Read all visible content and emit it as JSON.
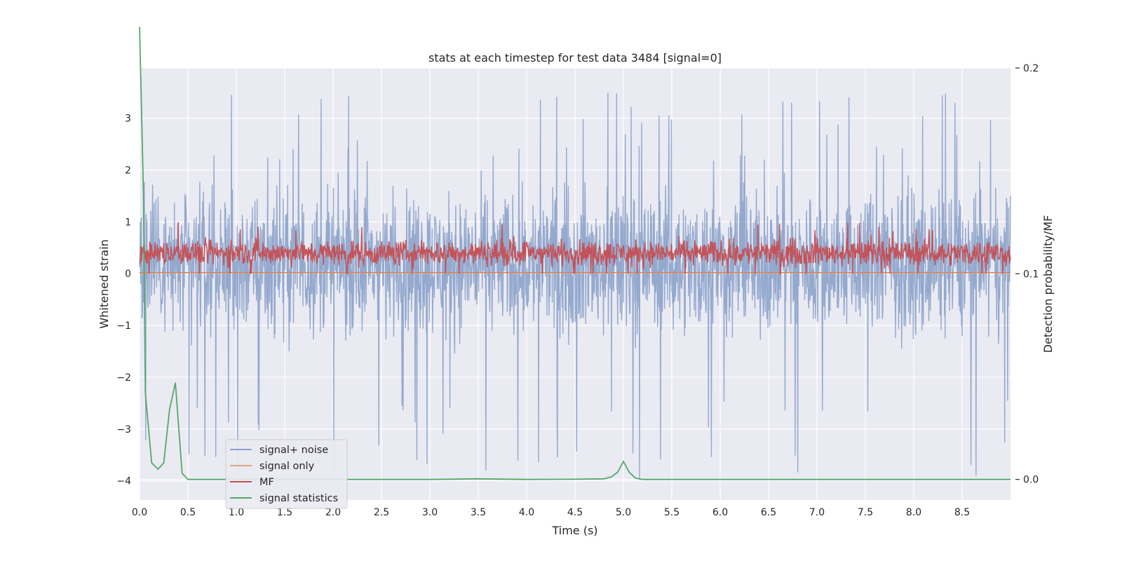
{
  "chart_data": {
    "type": "line",
    "title": "stats at each timestep for test data 3484 [signal=0]",
    "xlabel": "Time (s)",
    "ylabel": "Whitened strain",
    "y2label": "Detection probability/MF",
    "xlim": [
      0.0,
      9.0
    ],
    "ylim": [
      -4.37,
      3.97
    ],
    "y2lim": [
      -0.01,
      0.2
    ],
    "x_ticks": [
      "0.0",
      "0.5",
      "1.0",
      "1.5",
      "2.0",
      "2.5",
      "3.0",
      "3.5",
      "4.0",
      "4.5",
      "5.0",
      "5.5",
      "6.0",
      "6.5",
      "7.0",
      "7.5",
      "8.0",
      "8.5"
    ],
    "x_tick_values": [
      0.0,
      0.5,
      1.0,
      1.5,
      2.0,
      2.5,
      3.0,
      3.5,
      4.0,
      4.5,
      5.0,
      5.5,
      6.0,
      6.5,
      7.0,
      7.5,
      8.0,
      8.5
    ],
    "y_ticks": [
      "3",
      "2",
      "1",
      "0",
      "−1",
      "−2",
      "−3",
      "−4"
    ],
    "y_tick_values": [
      3,
      2,
      1,
      0,
      -1,
      -2,
      -3,
      -4
    ],
    "y2_ticks": [
      "0.2",
      "0.1",
      "0.0"
    ],
    "y2_tick_values": [
      0.2,
      0.1,
      0.0
    ],
    "grid": true,
    "legend_position": "lower-left",
    "series": [
      {
        "name": "signal+ noise",
        "color": "#4c72b0",
        "axis": "left",
        "kind": "noise",
        "x_range": [
          0.0,
          9.0
        ],
        "amplitude_range": [
          -4.0,
          3.55
        ],
        "typical_band": [
          -1.7,
          2.1
        ]
      },
      {
        "name": "signal only",
        "color": "#dd8452",
        "axis": "left",
        "x": [
          0.0,
          9.0
        ],
        "y": [
          0.02,
          0.02
        ]
      },
      {
        "name": "MF",
        "color": "#c44e52",
        "axis": "left",
        "kind": "noise",
        "x_range": [
          0.0,
          9.0
        ],
        "amplitude_range": [
          0.0,
          1.0
        ],
        "typical_band": [
          0.05,
          0.75
        ]
      },
      {
        "name": "signal statistics",
        "color": "#55a868",
        "axis": "right",
        "x": [
          0.0,
          0.02,
          0.04,
          0.06,
          0.125,
          0.19,
          0.25,
          0.31,
          0.37,
          0.44,
          0.5,
          1.0,
          2.0,
          3.0,
          3.5,
          4.0,
          4.5,
          4.8,
          4.875,
          4.94,
          5.0,
          5.06,
          5.125,
          5.2,
          5.5,
          6.0,
          7.0,
          8.0,
          9.0
        ],
        "y": [
          0.22,
          0.18,
          0.14,
          0.042,
          0.008,
          0.005,
          0.008,
          0.034,
          0.047,
          0.003,
          0.0,
          0.0,
          0.0,
          0.0,
          0.0003,
          0.0,
          0.0001,
          0.0003,
          0.0012,
          0.0035,
          0.0087,
          0.0035,
          0.0006,
          0.0,
          0.0,
          0.0,
          0.0,
          0.0,
          0.0
        ]
      }
    ]
  }
}
